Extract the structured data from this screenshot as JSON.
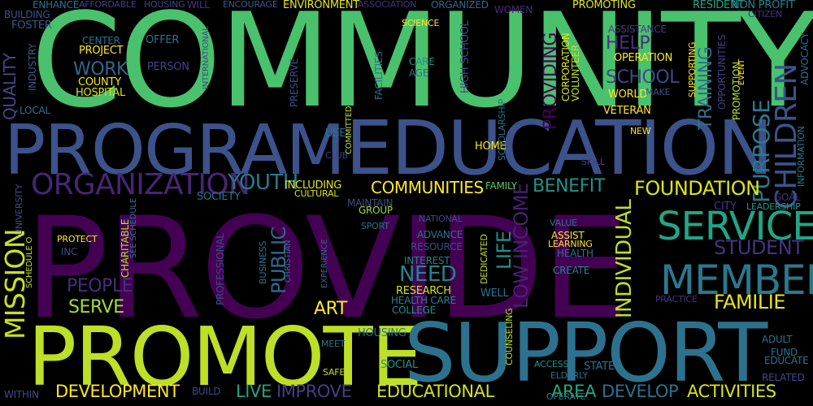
{
  "words": [
    {
      "text": "PROVIDE",
      "color": "#440154"
    },
    {
      "text": "COMMUNITY",
      "color": "#4ac16d"
    },
    {
      "text": "EDUCATION",
      "color": "#3b528b"
    },
    {
      "text": "PROGRAM",
      "color": "#3b528b"
    },
    {
      "text": "PROMOTE",
      "color": "#bddf26"
    },
    {
      "text": "SUPPORT",
      "color": "#2c728e"
    },
    {
      "text": "ORGANIZATION",
      "color": "#482576"
    },
    {
      "text": "SERVICE",
      "color": "#21a585"
    },
    {
      "text": "MEMBER",
      "color": "#2a788e"
    },
    {
      "text": "CHILDREN",
      "color": "#3a548c"
    },
    {
      "text": "MISSION",
      "color": "#c8e020"
    },
    {
      "text": "FAMILIE",
      "color": "#e8e419"
    },
    {
      "text": "STUDENT",
      "color": "#46337e"
    },
    {
      "text": "PURPOSE",
      "color": "#2a788e"
    },
    {
      "text": "YOUTH",
      "color": "#2a788e"
    },
    {
      "text": "FOUNDATION",
      "color": "#dde318"
    },
    {
      "text": "COMMUNITIES",
      "color": "#fde725"
    },
    {
      "text": "BENEFIT",
      "color": "#21918c"
    },
    {
      "text": "INDIVIDUAL",
      "color": "#bddf26"
    },
    {
      "text": "DEVELOPMENT",
      "color": "#fde725"
    },
    {
      "text": "LIVE",
      "color": "#20a386"
    },
    {
      "text": "IMPROVE",
      "color": "#433e85"
    },
    {
      "text": "EDUCATIONAL",
      "color": "#d2e21b"
    },
    {
      "text": "AREA",
      "color": "#22a884"
    },
    {
      "text": "DEVELOP",
      "color": "#2c728e"
    },
    {
      "text": "ACTIVITIES",
      "color": "#d8e219"
    },
    {
      "text": "PEOPLE",
      "color": "#472d7b"
    },
    {
      "text": "SERVE",
      "color": "#a5db36"
    },
    {
      "text": "ART",
      "color": "#fde725"
    },
    {
      "text": "NEED",
      "color": "#26828e"
    },
    {
      "text": "PUBLIC",
      "color": "#31688e"
    },
    {
      "text": "LIFE",
      "color": "#218e8d"
    },
    {
      "text": "LOW INCOME",
      "color": "#482173"
    },
    {
      "text": "PROVIDING",
      "color": "#440154"
    },
    {
      "text": "TRAINING",
      "color": "#2d708e"
    },
    {
      "text": "HELP",
      "color": "#472f7d"
    },
    {
      "text": "SCHOOL",
      "color": "#3e4989"
    },
    {
      "text": "WORK",
      "color": "#31688e"
    },
    {
      "text": "QUALITY",
      "color": "#3e4a89"
    },
    {
      "text": "ENVIRONMENT",
      "color": "#e5e419"
    },
    {
      "text": "PROMOTING",
      "color": "#dde318"
    },
    {
      "text": "WOMEN",
      "color": "#482878"
    },
    {
      "text": "RESIDENT",
      "color": "#20a486"
    },
    {
      "text": "NON PROFIT",
      "color": "#27808e"
    },
    {
      "text": "CITIZEN",
      "color": "#46327e"
    },
    {
      "text": "ADVOCACY",
      "color": "#30698e"
    },
    {
      "text": "OPERATION",
      "color": "#fde725"
    },
    {
      "text": "ASSISTANCE",
      "color": "#433e85"
    },
    {
      "text": "PROJECT",
      "color": "#fde725"
    },
    {
      "text": "OFFER",
      "color": "#2c728e"
    },
    {
      "text": "PERSON",
      "color": "#414487"
    },
    {
      "text": "COUNTY",
      "color": "#f1e51d"
    },
    {
      "text": "HOSPITAL",
      "color": "#d8e219"
    },
    {
      "text": "CENTER",
      "color": "#2c738e"
    },
    {
      "text": "FOSTER",
      "color": "#365c8d"
    },
    {
      "text": "INDUSTRY",
      "color": "#38588c"
    },
    {
      "text": "LOCAL",
      "color": "#2c738e"
    },
    {
      "text": "BUILDING",
      "color": "#3b528b"
    },
    {
      "text": "ENHANCE",
      "color": "#2d708e"
    },
    {
      "text": "AFFORDABLE",
      "color": "#433e85"
    },
    {
      "text": "HOUSING",
      "color": "#414487"
    },
    {
      "text": "WILL",
      "color": "#46327e"
    },
    {
      "text": "ENCOURAGE",
      "color": "#38588c"
    },
    {
      "text": "ASSOCIATION",
      "color": "#46337e"
    },
    {
      "text": "ORGANIZED",
      "color": "#31688e"
    },
    {
      "text": "SCIENCE",
      "color": "#fde725"
    },
    {
      "text": "CORPORATION",
      "color": "#dde318"
    },
    {
      "text": "VOLUNTEER",
      "color": "#bddf26"
    },
    {
      "text": "CARE",
      "color": "#21918c"
    },
    {
      "text": "AGE",
      "color": "#2c728e"
    },
    {
      "text": "HIGH SCHOOL",
      "color": "#3e4a89"
    },
    {
      "text": "WORLD",
      "color": "#fde725"
    },
    {
      "text": "VETERAN",
      "color": "#fde725"
    },
    {
      "text": "MAKE",
      "color": "#3b528b"
    },
    {
      "text": "SUPPORTING",
      "color": "#fde725"
    },
    {
      "text": "OPPORTUNITIES",
      "color": "#433e85"
    },
    {
      "text": "PROMOTION",
      "color": "#b5de2b"
    },
    {
      "text": "EVENT",
      "color": "#fde725"
    },
    {
      "text": "INFORMATION",
      "color": "#2a788e"
    },
    {
      "text": "LEADERSHIP",
      "color": "#1f988b"
    },
    {
      "text": "GOAL",
      "color": "#46327e"
    },
    {
      "text": "CITY",
      "color": "#46327e"
    },
    {
      "text": "HOME",
      "color": "#fde725"
    },
    {
      "text": "USE",
      "color": "#2c728e"
    },
    {
      "text": "CLUB",
      "color": "#433e85"
    },
    {
      "text": "NEW",
      "color": "#fde725"
    },
    {
      "text": "FAMILY",
      "color": "#5ec962"
    },
    {
      "text": "SKILL",
      "color": "#433e85"
    },
    {
      "text": "INCLUDING",
      "color": "#dde318"
    },
    {
      "text": "CULTURAL",
      "color": "#dde318"
    },
    {
      "text": "SOCIETY",
      "color": "#2c728e"
    },
    {
      "text": "MAINTAIN",
      "color": "#3b528b"
    },
    {
      "text": "GROUP",
      "color": "#a0da39"
    },
    {
      "text": "SPORT",
      "color": "#2c728e"
    },
    {
      "text": "NATIONAL",
      "color": "#3e4a89"
    },
    {
      "text": "ADVANCE",
      "color": "#2c728e"
    },
    {
      "text": "RESOURCE",
      "color": "#3e4a89"
    },
    {
      "text": "INTEREST",
      "color": "#26828e"
    },
    {
      "text": "RESEARCH",
      "color": "#d2e21b"
    },
    {
      "text": "HEALTH CARE",
      "color": "#26828e"
    },
    {
      "text": "COLLEGE",
      "color": "#21918c"
    },
    {
      "text": "WELL",
      "color": "#2c728e"
    },
    {
      "text": "DEDICATED",
      "color": "#bddf26"
    },
    {
      "text": "ASSIST",
      "color": "#fde725"
    },
    {
      "text": "LEARNING",
      "color": "#fde725"
    },
    {
      "text": "HEALTH",
      "color": "#2c728e"
    },
    {
      "text": "CREATE",
      "color": "#26828e"
    },
    {
      "text": "VALUE",
      "color": "#2c728e"
    },
    {
      "text": "PRACTICE",
      "color": "#46337e"
    },
    {
      "text": "PROTECT",
      "color": "#fde725"
    },
    {
      "text": "INC",
      "color": "#3e4a89"
    },
    {
      "text": "CHARITABLE",
      "color": "#bddf26"
    },
    {
      "text": "SEE SCHEDULE",
      "color": "#2c728e"
    },
    {
      "text": "PROFESSIONAL",
      "color": "#3e4a89"
    },
    {
      "text": "BUSINESS",
      "color": "#2c728e"
    },
    {
      "text": "CHRISTIAN",
      "color": "#31688e"
    },
    {
      "text": "EXPERIENCE",
      "color": "#31688e"
    },
    {
      "text": "HOUSING",
      "color": "#2c728e"
    },
    {
      "text": "MEET",
      "color": "#2c728e"
    },
    {
      "text": "SOCIAL",
      "color": "#21918c"
    },
    {
      "text": "SAFE",
      "color": "#bddf26"
    },
    {
      "text": "ACCESS",
      "color": "#21918c"
    },
    {
      "text": "ELDERLY",
      "color": "#2c728e"
    },
    {
      "text": "STATE",
      "color": "#2c728e"
    },
    {
      "text": "OPERATE",
      "color": "#2c728e"
    },
    {
      "text": "COUNSELING",
      "color": "#bddf26"
    },
    {
      "text": "ADULT",
      "color": "#2c728e"
    },
    {
      "text": "FUND",
      "color": "#2c728e"
    },
    {
      "text": "EDUCATE",
      "color": "#2c728e"
    },
    {
      "text": "RELATED",
      "color": "#3e4a89"
    },
    {
      "text": "WITHIN",
      "color": "#3e4a89"
    },
    {
      "text": "UNIVERSITY",
      "color": "#3e4a89"
    },
    {
      "text": "SCHEDULE O",
      "color": "#bddf26"
    },
    {
      "text": "PRESERVE",
      "color": "#3e4a89"
    },
    {
      "text": "FACILITIES",
      "color": "#2c728e"
    },
    {
      "text": "SCHOLARSHIP",
      "color": "#2c728e"
    },
    {
      "text": "INTERNATIONAL",
      "color": "#3e4a89"
    },
    {
      "text": "COMMITTED",
      "color": "#bddf26"
    },
    {
      "text": "BUILD",
      "color": "#3e4a89"
    }
  ]
}
